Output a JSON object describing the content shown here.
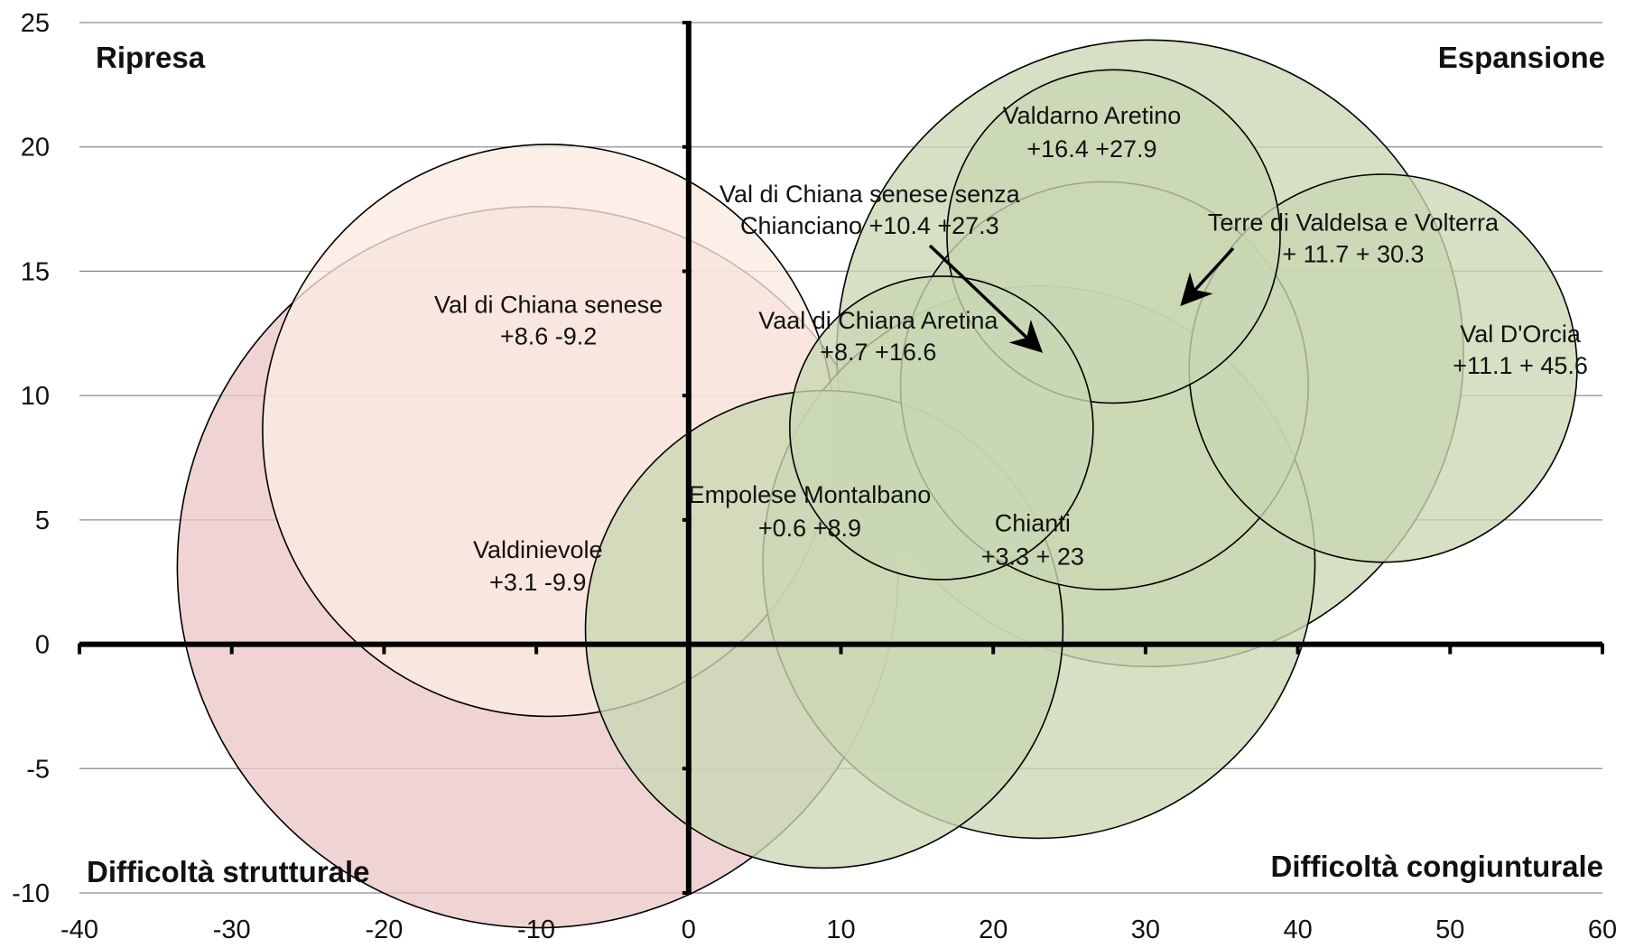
{
  "chart_data": {
    "type": "scatter",
    "title": "",
    "xlabel": "",
    "ylabel": "",
    "xlim": [
      -40,
      60
    ],
    "ylim": [
      -10,
      25
    ],
    "x_ticks": [
      "-40",
      "-30",
      "-20",
      "-10",
      "0",
      "10",
      "20",
      "30",
      "40",
      "50",
      "60"
    ],
    "y_ticks": [
      "-10",
      "-5",
      "0",
      "5",
      "10",
      "15",
      "20",
      "25"
    ],
    "grid": "horizontal",
    "quadrant_labels": {
      "top_left": "Ripresa",
      "top_right": "Espansione",
      "bottom_left": "Difficoltà strutturale",
      "bottom_right": "Difficoltà congiunturale"
    },
    "colors": {
      "positive": "#c9d7b3",
      "peach": "#fbebe0",
      "pink": "#ecc8c8",
      "grid": "#8c8c8c",
      "axis": "#000000"
    },
    "bubbles": [
      {
        "name": "Val di Chiana senese",
        "label_lines": [
          "Val di Chiana senese",
          "+8.6 -9.2"
        ],
        "x": -9.2,
        "y": 8.6,
        "size": 11.5,
        "color": "peach"
      },
      {
        "name": "Valdinievole",
        "label_lines": [
          "Valdinievole",
          "+3.1 -9.9"
        ],
        "x": -9.9,
        "y": 3.1,
        "size": 14.5,
        "color": "pink"
      },
      {
        "name": "Empolese Montalbano",
        "label_lines": [
          "Empolese Montalbano",
          "+0.6 +8.9"
        ],
        "x": 8.9,
        "y": 0.6,
        "size": 9.6,
        "color": "positive"
      },
      {
        "name": "Chianti",
        "label_lines": [
          "Chianti",
          "+3.3 + 23"
        ],
        "x": 23,
        "y": 3.3,
        "size": 11.1,
        "color": "positive"
      },
      {
        "name": "Vaal di Chiana Aretina",
        "label_lines": [
          "Vaal di Chiana Aretina",
          "+8.7 +16.6"
        ],
        "x": 16.6,
        "y": 8.7,
        "size": 6.1,
        "color": "positive"
      },
      {
        "name": "Valdarno Aretino",
        "label_lines": [
          "Valdarno Aretino",
          "+16.4 +27.9"
        ],
        "x": 27.9,
        "y": 16.4,
        "size": 6.7,
        "color": "positive"
      },
      {
        "name": "Terre di Valdelsa e Volterra",
        "label_lines": [
          "Terre di Valdelsa e Volterra",
          "+ 11.7 + 30.3"
        ],
        "x": 30.3,
        "y": 11.7,
        "size": 12.6,
        "color": "positive"
      },
      {
        "name": "Val di Chiana senese senza Chianciano",
        "label_lines": [
          "Val di Chiana senese senza",
          "Chianciano +10.4  +27.3"
        ],
        "x": 27.3,
        "y": 10.4,
        "size": 8.2,
        "color": "positive"
      },
      {
        "name": "Val D'Orcia",
        "label_lines": [
          "Val D'Orcia",
          "+11.1 + 45.6"
        ],
        "x": 45.6,
        "y": 11.1,
        "size": 7.8,
        "color": "positive"
      }
    ]
  }
}
